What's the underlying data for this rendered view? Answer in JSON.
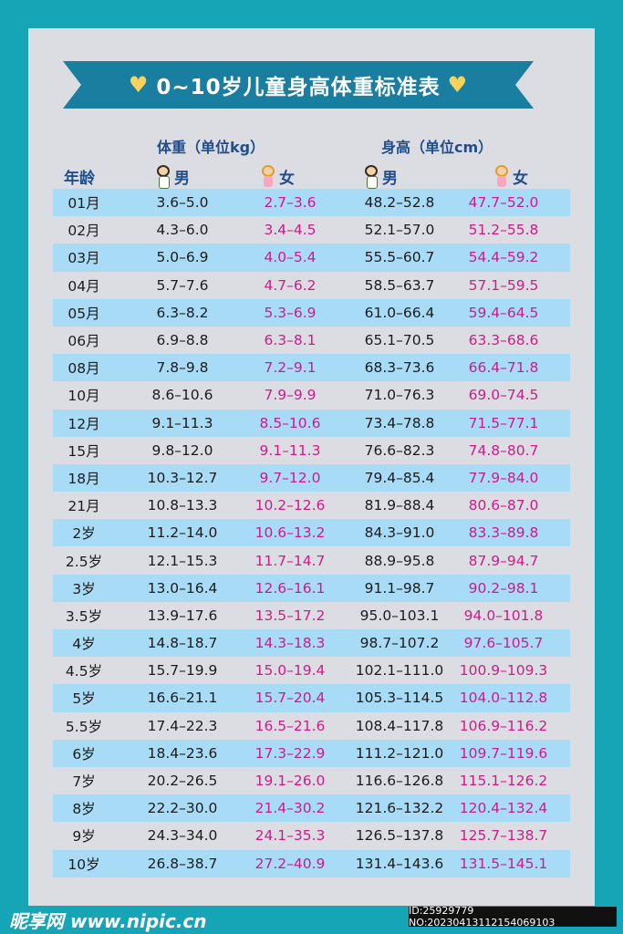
{
  "title": "0~10岁儿童身高体重标准表",
  "weight_header": "体重（单位kg）",
  "height_header": "身高（单位cm）",
  "age_header": "年龄",
  "boy_label": "男",
  "girl_label": "女",
  "colors": {
    "background": "#15a5b6",
    "banner": "#1a7ea0",
    "row_shade": "#a8dbf5",
    "girl_text": "#d01a8a",
    "heart": "#f4d35e"
  },
  "rows": [
    {
      "age": "01月",
      "wb": "3.6–5.0",
      "wg": "2.7–3.6",
      "hb": "48.2–52.8",
      "hg": "47.7–52.0"
    },
    {
      "age": "02月",
      "wb": "4.3–6.0",
      "wg": "3.4–4.5",
      "hb": "52.1–57.0",
      "hg": "51.2–55.8"
    },
    {
      "age": "03月",
      "wb": "5.0–6.9",
      "wg": "4.0–5.4",
      "hb": "55.5–60.7",
      "hg": "54.4–59.2"
    },
    {
      "age": "04月",
      "wb": "5.7–7.6",
      "wg": "4.7–6.2",
      "hb": "58.5–63.7",
      "hg": "57.1–59.5"
    },
    {
      "age": "05月",
      "wb": "6.3–8.2",
      "wg": "5.3–6.9",
      "hb": "61.0–66.4",
      "hg": "59.4–64.5"
    },
    {
      "age": "06月",
      "wb": "6.9–8.8",
      "wg": "6.3–8.1",
      "hb": "65.1–70.5",
      "hg": "63.3–68.6"
    },
    {
      "age": "08月",
      "wb": "7.8–9.8",
      "wg": "7.2–9.1",
      "hb": "68.3–73.6",
      "hg": "66.4–71.8"
    },
    {
      "age": "10月",
      "wb": "8.6–10.6",
      "wg": "7.9–9.9",
      "hb": "71.0–76.3",
      "hg": "69.0–74.5"
    },
    {
      "age": "12月",
      "wb": "9.1–11.3",
      "wg": "8.5–10.6",
      "hb": "73.4–78.8",
      "hg": "71.5–77.1"
    },
    {
      "age": "15月",
      "wb": "9.8–12.0",
      "wg": "9.1–11.3",
      "hb": "76.6–82.3",
      "hg": "74.8–80.7"
    },
    {
      "age": "18月",
      "wb": "10.3–12.7",
      "wg": "9.7–12.0",
      "hb": "79.4–85.4",
      "hg": "77.9–84.0"
    },
    {
      "age": "21月",
      "wb": "10.8–13.3",
      "wg": "10.2–12.6",
      "hb": "81.9–88.4",
      "hg": "80.6–87.0"
    },
    {
      "age": "2岁",
      "wb": "11.2–14.0",
      "wg": "10.6–13.2",
      "hb": "84.3–91.0",
      "hg": "83.3–89.8"
    },
    {
      "age": "2.5岁",
      "wb": "12.1–15.3",
      "wg": "11.7–14.7",
      "hb": "88.9–95.8",
      "hg": "87.9–94.7"
    },
    {
      "age": "3岁",
      "wb": "13.0–16.4",
      "wg": "12.6–16.1",
      "hb": "91.1–98.7",
      "hg": "90.2–98.1"
    },
    {
      "age": "3.5岁",
      "wb": "13.9–17.6",
      "wg": "13.5–17.2",
      "hb": "95.0–103.1",
      "hg": "94.0–101.8"
    },
    {
      "age": "4岁",
      "wb": "14.8–18.7",
      "wg": "14.3–18.3",
      "hb": "98.7–107.2",
      "hg": "97.6–105.7"
    },
    {
      "age": "4.5岁",
      "wb": "15.7–19.9",
      "wg": "15.0–19.4",
      "hb": "102.1–111.0",
      "hg": "100.9–109.3"
    },
    {
      "age": "5岁",
      "wb": "16.6–21.1",
      "wg": "15.7–20.4",
      "hb": "105.3–114.5",
      "hg": "104.0–112.8"
    },
    {
      "age": "5.5岁",
      "wb": "17.4–22.3",
      "wg": "16.5–21.6",
      "hb": "108.4–117.8",
      "hg": "106.9–116.2"
    },
    {
      "age": "6岁",
      "wb": "18.4–23.6",
      "wg": "17.3–22.9",
      "hb": "111.2–121.0",
      "hg": "109.7–119.6"
    },
    {
      "age": "7岁",
      "wb": "20.2–26.5",
      "wg": "19.1–26.0",
      "hb": "116.6–126.8",
      "hg": "115.1–126.2"
    },
    {
      "age": "8岁",
      "wb": "22.2–30.0",
      "wg": "21.4–30.2",
      "hb": "121.6–132.2",
      "hg": "120.4–132.4"
    },
    {
      "age": "9岁",
      "wb": "24.3–34.0",
      "wg": "24.1–35.3",
      "hb": "126.5–137.8",
      "hg": "125.7–138.7"
    },
    {
      "age": "10岁",
      "wb": "26.8–38.7",
      "wg": "27.2–40.9",
      "hb": "131.4–143.6",
      "hg": "131.5–145.1"
    }
  ],
  "footer": {
    "logo": "昵享网 www.nipic.cn",
    "id_text": "ID:25929779 NO:20230413112154069103"
  }
}
